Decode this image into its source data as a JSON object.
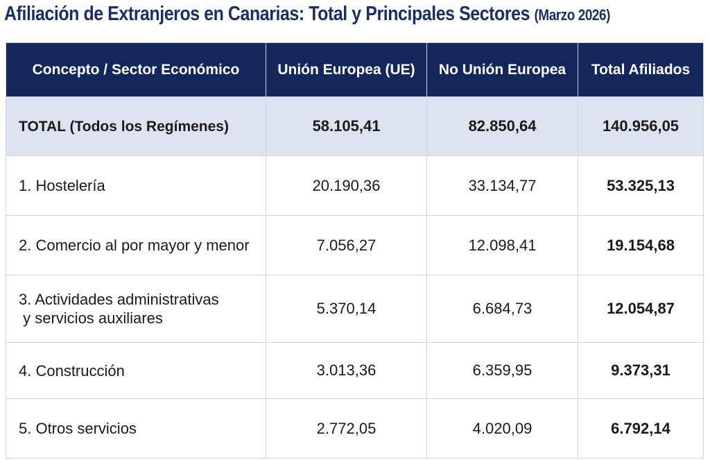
{
  "title": {
    "main": "Afiliación de Extranjeros en Canarias: Total y Principales Sectores",
    "date": "(Marzo 2026)"
  },
  "table": {
    "headers": [
      "Concepto / Sector Económico",
      "Unión Europea (UE)",
      "No Unión Europea",
      "Total Afiliados"
    ],
    "total_row": {
      "label": "TOTAL (Todos los Regímenes)",
      "ue": "58.105,41",
      "no_ue": "82.850,64",
      "total": "140.956,05"
    },
    "rows": [
      {
        "label": "1. Hostelería",
        "ue": "20.190,36",
        "no_ue": "33.134,77",
        "total": "53.325,13"
      },
      {
        "label": "2. Comercio al por mayor y menor",
        "ue": "7.056,27",
        "no_ue": "12.098,41",
        "total": "19.154,68"
      },
      {
        "label_line1": "3. Actividades administrativas",
        "label_line2": "y servicios auxiliares",
        "ue": "5.370,14",
        "no_ue": "6.684,73",
        "total": "12.054,87"
      },
      {
        "label": "4. Construcción",
        "ue": "3.013,36",
        "no_ue": "6.359,95",
        "total": "9.373,31"
      },
      {
        "label": "5. Otros servicios",
        "ue": "2.772,05",
        "no_ue": "4.020,09",
        "total": "6.792,14"
      }
    ]
  },
  "colors": {
    "title": "#1b2f66",
    "header_bg": "#13275b",
    "total_row_bg": "#dde3ef",
    "border": "#cfd4dc"
  }
}
